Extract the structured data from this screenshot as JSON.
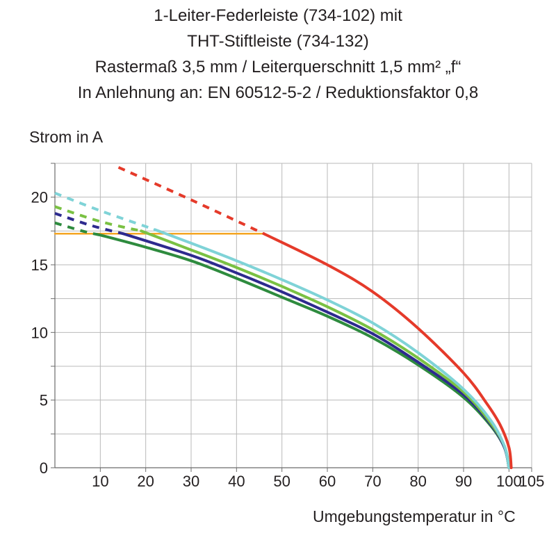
{
  "chart_data": {
    "type": "line",
    "title_lines": [
      "1-Leiter-Federleiste (734-102) mit",
      "THT-Stiftleiste (734-132)",
      "Rastermaß 3,5 mm / Leiterquerschnitt 1,5 mm² „f“",
      "In Anlehnung an: EN 60512-5-2 / Reduktionsfaktor 0,8"
    ],
    "ylabel": "Strom in A",
    "xlabel": "Umgebungstemperatur in °C",
    "xlim": [
      0,
      105
    ],
    "ylim": [
      0,
      22.5
    ],
    "x_ticks": [
      10,
      20,
      30,
      40,
      50,
      60,
      70,
      80,
      90,
      100,
      105
    ],
    "y_ticks": [
      0,
      5,
      10,
      15,
      20
    ],
    "grid": true,
    "series": [
      {
        "name": "red",
        "color": "#e53a2a",
        "dashed": [
          [
            14,
            22.2
          ],
          [
            30,
            19.8
          ],
          [
            46,
            17.3
          ]
        ],
        "solid": [
          [
            46,
            17.3
          ],
          [
            60,
            15.0
          ],
          [
            70,
            13.0
          ],
          [
            80,
            10.3
          ],
          [
            90,
            7.0
          ],
          [
            95,
            4.8
          ],
          [
            98,
            3.2
          ],
          [
            100,
            1.5
          ],
          [
            100.5,
            0
          ]
        ]
      },
      {
        "name": "light-blue",
        "color": "#7fd3d7",
        "dashed": [
          [
            0,
            20.3
          ],
          [
            10,
            19.0
          ],
          [
            22,
            17.6
          ]
        ],
        "solid": [
          [
            22,
            17.6
          ],
          [
            30,
            16.6
          ],
          [
            40,
            15.3
          ],
          [
            50,
            13.9
          ],
          [
            60,
            12.4
          ],
          [
            70,
            10.7
          ],
          [
            80,
            8.5
          ],
          [
            90,
            5.8
          ],
          [
            96,
            3.5
          ],
          [
            99,
            1.6
          ],
          [
            100,
            0
          ]
        ]
      },
      {
        "name": "light-green",
        "color": "#7ac143",
        "dashed": [
          [
            0,
            19.3
          ],
          [
            10,
            18.2
          ],
          [
            19,
            17.5
          ]
        ],
        "solid": [
          [
            19,
            17.5
          ],
          [
            30,
            16.1
          ],
          [
            40,
            14.8
          ],
          [
            50,
            13.4
          ],
          [
            60,
            11.9
          ],
          [
            70,
            10.2
          ],
          [
            80,
            8.1
          ],
          [
            90,
            5.6
          ],
          [
            96,
            3.3
          ],
          [
            99,
            1.6
          ],
          [
            100,
            0
          ]
        ]
      },
      {
        "name": "dark-blue",
        "color": "#2d2a8e",
        "dashed": [
          [
            0,
            18.8
          ],
          [
            8,
            17.9
          ],
          [
            15,
            17.3
          ]
        ],
        "solid": [
          [
            15,
            17.3
          ],
          [
            30,
            15.7
          ],
          [
            40,
            14.4
          ],
          [
            50,
            13.0
          ],
          [
            60,
            11.5
          ],
          [
            70,
            9.9
          ],
          [
            80,
            7.8
          ],
          [
            90,
            5.4
          ],
          [
            96,
            3.2
          ],
          [
            99,
            1.5
          ],
          [
            100,
            0
          ]
        ]
      },
      {
        "name": "dark-green",
        "color": "#2e8b3e",
        "dashed": [
          [
            0,
            18.1
          ],
          [
            6,
            17.5
          ],
          [
            10,
            17.2
          ]
        ],
        "solid": [
          [
            10,
            17.2
          ],
          [
            20,
            16.3
          ],
          [
            30,
            15.3
          ],
          [
            40,
            14.0
          ],
          [
            50,
            12.6
          ],
          [
            60,
            11.2
          ],
          [
            70,
            9.6
          ],
          [
            80,
            7.6
          ],
          [
            90,
            5.2
          ],
          [
            96,
            3.1
          ],
          [
            99,
            1.5
          ],
          [
            100,
            0
          ]
        ]
      },
      {
        "name": "orange-limit",
        "color": "#f5a623",
        "dashed": [],
        "solid": [
          [
            0,
            17.3
          ],
          [
            46,
            17.3
          ]
        ]
      }
    ]
  }
}
